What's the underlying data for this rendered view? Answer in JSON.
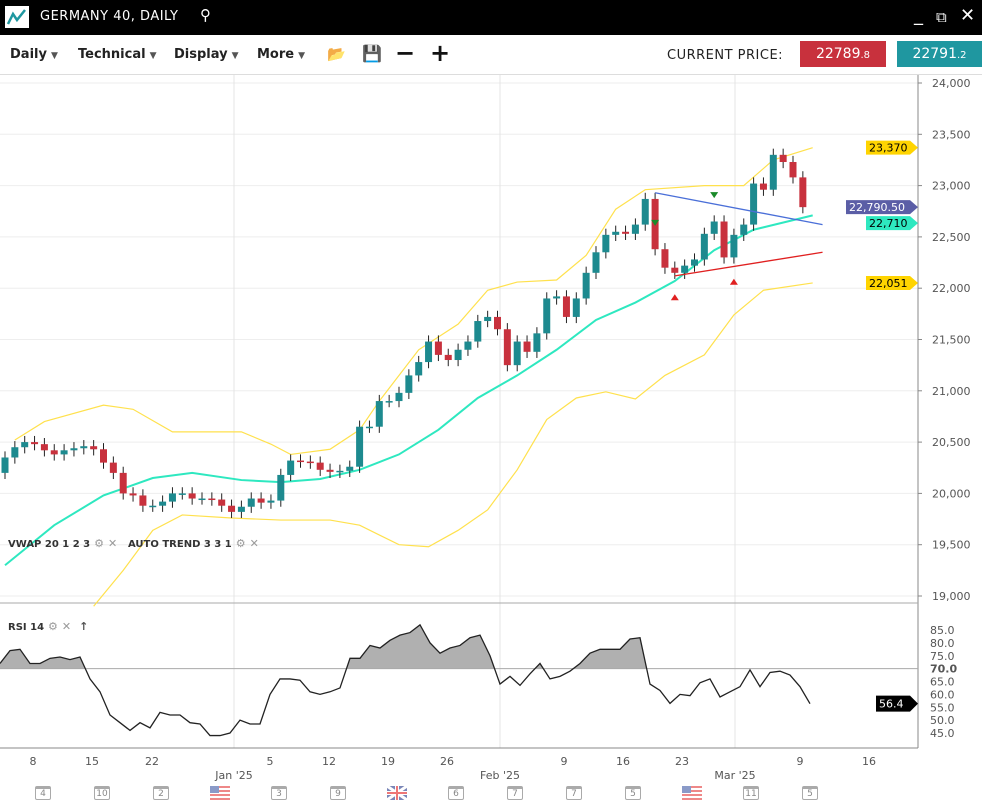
{
  "window": {
    "title": "GERMANY 40, DAILY",
    "icons": [
      "chart-logo-icon",
      "search-icon",
      "minimize-icon",
      "popout-icon",
      "close-icon"
    ]
  },
  "toolbar": {
    "menus": [
      "Daily",
      "Technical",
      "Display",
      "More"
    ],
    "icons": [
      "folder-open-icon",
      "save-icon",
      "zoom-out-icon",
      "zoom-in-icon"
    ],
    "current_price_label": "CURRENT PRICE:",
    "sell": {
      "main": "22789",
      "frac": ".8",
      "color": "#c8313d"
    },
    "buy": {
      "main": "22791",
      "frac": ".2",
      "color": "#1f97a0"
    }
  },
  "indicators": {
    "vwap": "VWAP 20 1 2 3",
    "auto_trend": "AUTO TREND 3 3 1",
    "rsi": "RSI 14"
  },
  "chart_data": {
    "type": "candlestick",
    "ylim": [
      19000,
      24000
    ],
    "yticks": [
      "24,000",
      "23,500",
      "23,000",
      "22,500",
      "22,000",
      "21,500",
      "21,000",
      "20,500",
      "20,000",
      "19,500",
      "19,000"
    ],
    "ytick_values": [
      24000,
      23500,
      23000,
      22500,
      22000,
      21500,
      21000,
      20500,
      20000,
      19500,
      19000
    ],
    "xticks": [
      "8",
      "15",
      "22",
      "5",
      "12",
      "19",
      "26",
      "9",
      "16",
      "23",
      "9",
      "16"
    ],
    "month_labels": [
      "Jan '25",
      "Feb '25",
      "Mar '25"
    ],
    "closes": [
      20350,
      20450,
      20500,
      20480,
      20420,
      20380,
      20420,
      20440,
      20460,
      20430,
      20300,
      20200,
      20000,
      19980,
      19880,
      19880,
      19920,
      20000,
      20000,
      19950,
      19950,
      19940,
      19880,
      19820,
      19870,
      19950,
      19910,
      19930,
      20180,
      20320,
      20310,
      20300,
      20230,
      20210,
      20220,
      20260,
      20650,
      20650,
      20900,
      20900,
      20980,
      21150,
      21280,
      21480,
      21350,
      21300,
      21400,
      21480,
      21680,
      21720,
      21600,
      21250,
      21480,
      21380,
      21560,
      21900,
      21920,
      21720,
      21900,
      22150,
      22350,
      22520,
      22550,
      22530,
      22620,
      22870,
      22380,
      22200,
      22150,
      22220,
      22280,
      22530,
      22650,
      22300,
      22520,
      22620,
      23020,
      22960,
      23300,
      23230,
      23080,
      22790
    ],
    "bands": {
      "upper": [
        [
          1,
          20520
        ],
        [
          4,
          20700
        ],
        [
          10,
          20860
        ],
        [
          13,
          20820
        ],
        [
          17,
          20600
        ],
        [
          24,
          20600
        ],
        [
          27,
          20480
        ],
        [
          29,
          20380
        ],
        [
          33,
          20430
        ],
        [
          36,
          20620
        ],
        [
          38,
          20900
        ],
        [
          42,
          21400
        ],
        [
          46,
          21650
        ],
        [
          49,
          21980
        ],
        [
          52,
          22060
        ],
        [
          56,
          22080
        ],
        [
          59,
          22320
        ],
        [
          62,
          22770
        ],
        [
          65,
          22960
        ],
        [
          71,
          23000
        ],
        [
          75,
          23000
        ],
        [
          78,
          23250
        ],
        [
          82,
          23370
        ]
      ],
      "middle": [
        [
          0,
          19300
        ],
        [
          5,
          19690
        ],
        [
          10,
          19980
        ],
        [
          15,
          20150
        ],
        [
          19,
          20200
        ],
        [
          24,
          20130
        ],
        [
          28,
          20110
        ],
        [
          32,
          20140
        ],
        [
          36,
          20230
        ],
        [
          40,
          20380
        ],
        [
          44,
          20620
        ],
        [
          48,
          20930
        ],
        [
          52,
          21150
        ],
        [
          56,
          21400
        ],
        [
          60,
          21690
        ],
        [
          64,
          21860
        ],
        [
          68,
          22070
        ],
        [
          72,
          22370
        ],
        [
          76,
          22570
        ],
        [
          82,
          22710
        ]
      ],
      "lower": [
        [
          9,
          18900
        ],
        [
          12,
          19250
        ],
        [
          15,
          19640
        ],
        [
          18,
          19790
        ],
        [
          23,
          19760
        ],
        [
          28,
          19740
        ],
        [
          33,
          19740
        ],
        [
          36,
          19690
        ],
        [
          40,
          19500
        ],
        [
          43,
          19480
        ],
        [
          46,
          19640
        ],
        [
          49,
          19840
        ],
        [
          52,
          20230
        ],
        [
          55,
          20720
        ],
        [
          58,
          20930
        ],
        [
          61,
          20990
        ],
        [
          64,
          20920
        ],
        [
          67,
          21150
        ],
        [
          71,
          21350
        ],
        [
          74,
          21740
        ],
        [
          77,
          21980
        ],
        [
          82,
          22051
        ]
      ]
    },
    "trendlines": [
      {
        "color": "#4a6fd8",
        "from": [
          66,
          22930
        ],
        "to": [
          83,
          22620
        ]
      },
      {
        "color": "#e02020",
        "from": [
          68,
          22120
        ],
        "to": [
          83,
          22350
        ]
      }
    ],
    "markers": {
      "down": [
        66,
        72
      ],
      "up": [
        68,
        74
      ]
    },
    "price_labels": [
      {
        "text": "23,370",
        "value": 23370,
        "color": "#ffd400",
        "textcolor": "#000"
      },
      {
        "text": "22,051",
        "value": 22051,
        "color": "#ffd400",
        "textcolor": "#000"
      },
      {
        "text": "22,710",
        "value": 22710,
        "color": "#2ee8c0",
        "textcolor": "#000"
      },
      {
        "text": "22,790.50",
        "value": 22790.5,
        "color": "#5b5ea6",
        "textcolor": "#fff"
      }
    ],
    "colors": {
      "up": "#1d8a8f",
      "down": "#c8313d",
      "bands": "#ffe14d",
      "middle": "#2ee8c0"
    },
    "rsi": {
      "ylim": [
        42,
        88
      ],
      "yticks": [
        "85.0",
        "80.0",
        "75.0",
        "70.0",
        "65.0",
        "60.0",
        "55.0",
        "50.0",
        "45.0"
      ],
      "ytick_values": [
        85,
        80,
        75,
        70,
        65,
        60,
        55,
        50,
        45
      ],
      "overbought": 70,
      "current": "56.4",
      "values": [
        72,
        77,
        77.5,
        72,
        72,
        74,
        74.5,
        73.5,
        74.5,
        66,
        61,
        52,
        49,
        46,
        49,
        47,
        53,
        52,
        52,
        49,
        48.5,
        44,
        44,
        45,
        50,
        48.5,
        48.5,
        60,
        66,
        66,
        65.5,
        61,
        60,
        61,
        62.5,
        74,
        74,
        79,
        78,
        81,
        83,
        84,
        87,
        80,
        76,
        78,
        79,
        82,
        83,
        75,
        64,
        67,
        63.5,
        68,
        72,
        66,
        67,
        69,
        72,
        76,
        77.5,
        77.5,
        77.5,
        81.5,
        82,
        64,
        61.5,
        56.5,
        60,
        59.5,
        64.5,
        66,
        59,
        61,
        63,
        69.5,
        63,
        68.5,
        69,
        67.5,
        63,
        56.4
      ]
    }
  },
  "events": [
    "4",
    "10",
    "2",
    "us-flag",
    "3",
    "9",
    "uk-flag",
    "6",
    "7",
    "7",
    "5",
    "us-flag",
    "11",
    "5"
  ]
}
